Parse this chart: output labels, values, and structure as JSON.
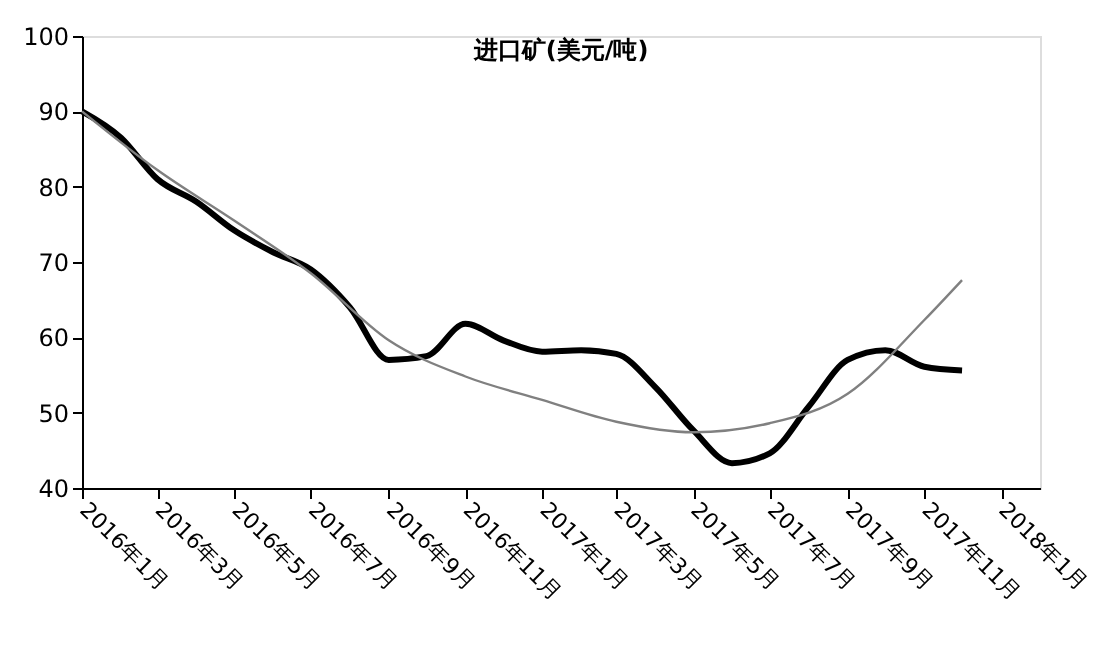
{
  "chart_data": {
    "type": "line",
    "title": "进口矿(美元/吨)",
    "x": [
      "2016-01",
      "2016-02",
      "2016-03",
      "2016-04",
      "2016-05",
      "2016-06",
      "2016-07",
      "2016-08",
      "2016-09",
      "2016-10",
      "2016-11",
      "2016-12",
      "2017-01",
      "2017-02",
      "2017-03",
      "2017-04",
      "2017-05",
      "2017-06",
      "2017-07",
      "2017-08",
      "2017-09",
      "2017-10",
      "2017-11",
      "2017-12"
    ],
    "series": [
      {
        "color": "#000000",
        "values": [
          90,
          86.5,
          81,
          78,
          74.2,
          71.3,
          69,
          64,
          57,
          57.5,
          61.8,
          59.6,
          58.1,
          58.3,
          57.8,
          53.4,
          47.7,
          43.3,
          44.6,
          50.8,
          57,
          58.3,
          56.1,
          55.6
        ]
      },
      {
        "type": "line",
        "color": "#808080",
        "x": [
          "2016-01",
          "2016-03",
          "2016-05",
          "2016-07",
          "2016-09",
          "2016-11",
          "2017-01",
          "2017-03",
          "2017-05",
          "2017-07",
          "2017-09",
          "2017-11",
          "2017-12"
        ],
        "values": [
          90,
          82.2,
          75.5,
          68.5,
          59.6,
          54.8,
          51.7,
          48.8,
          47.4,
          48.6,
          52.5,
          62.3,
          67.6
        ]
      }
    ],
    "xlim": [
      "2016-01",
      "2018-02"
    ],
    "xticks": [
      {
        "value": "2016-01",
        "label": "2016年1月"
      },
      {
        "value": "2016-03",
        "label": "2016年3月"
      },
      {
        "value": "2016-05",
        "label": "2016年5月"
      },
      {
        "value": "2016-07",
        "label": "2016年7月"
      },
      {
        "value": "2016-09",
        "label": "2016年9月"
      },
      {
        "value": "2016-11",
        "label": "2016年11月"
      },
      {
        "value": "2017-01",
        "label": "2017年1月"
      },
      {
        "value": "2017-03",
        "label": "2017年3月"
      },
      {
        "value": "2017-05",
        "label": "2017年5月"
      },
      {
        "value": "2017-07",
        "label": "2017年7月"
      },
      {
        "value": "2017-09",
        "label": "2017年9月"
      },
      {
        "value": "2017-11",
        "label": "2017年11月"
      },
      {
        "value": "2018-01",
        "label": "2018年1月"
      }
    ],
    "ylim": [
      40,
      100
    ],
    "yticks": [
      40,
      50,
      60,
      70,
      80,
      90,
      100
    ],
    "grid": false,
    "marker": "none"
  }
}
